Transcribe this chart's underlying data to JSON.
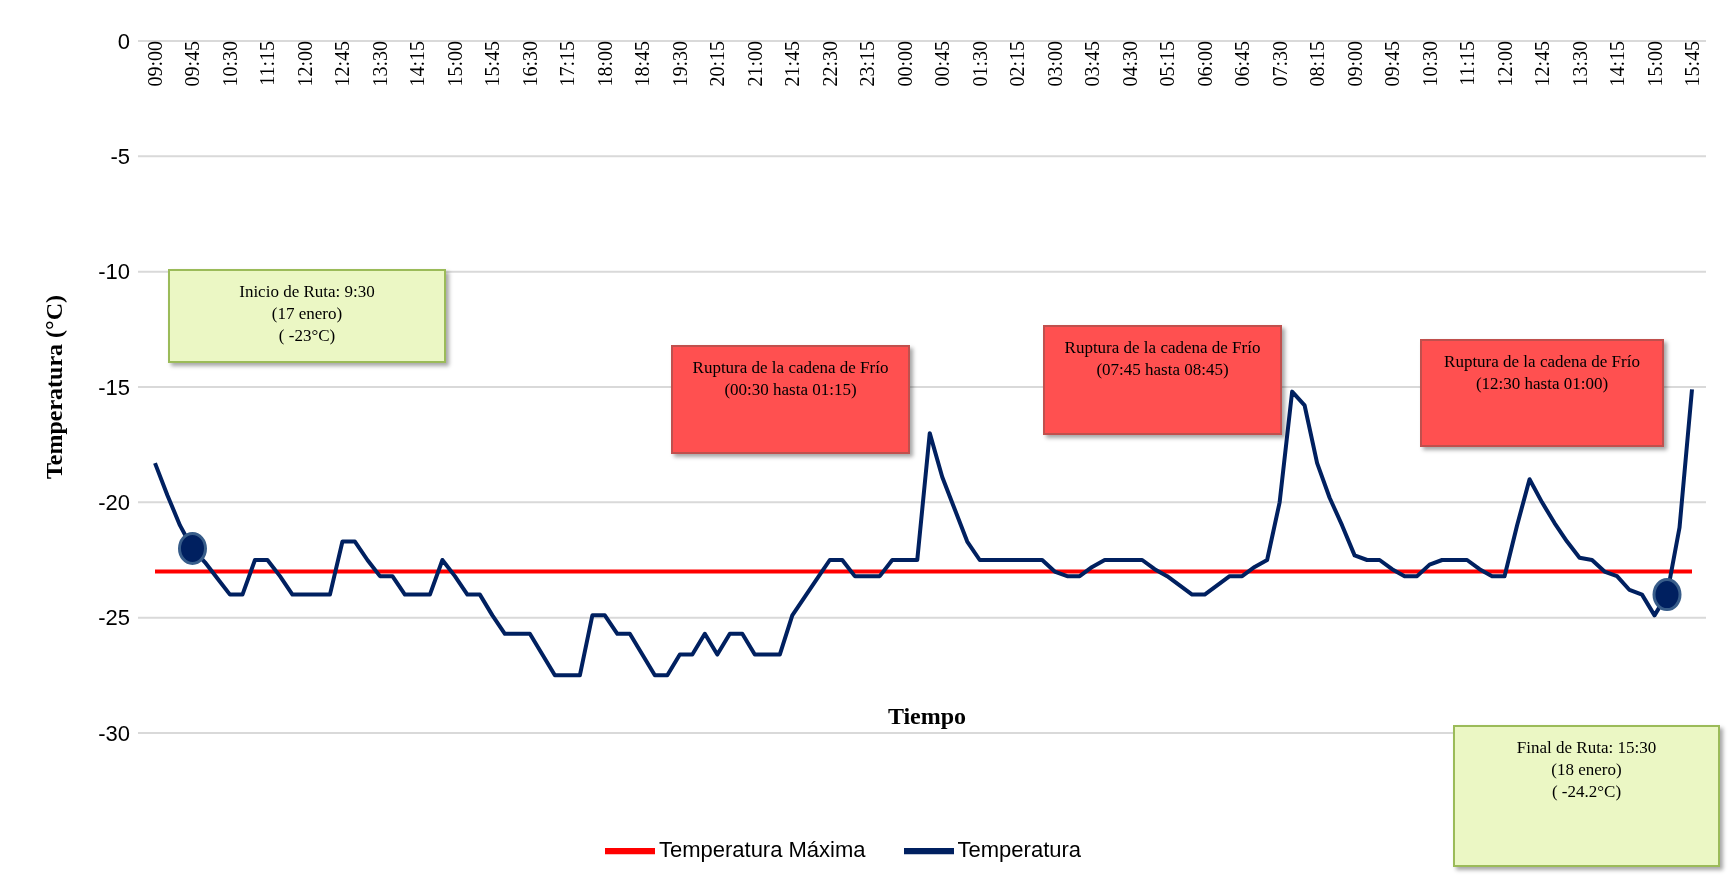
{
  "chart_data": {
    "type": "line",
    "xlabel": "Tiempo",
    "ylabel": "Temperatura (°C)",
    "categories": [
      "09:00",
      null,
      null,
      "09:45",
      null,
      null,
      "10:30",
      null,
      null,
      "11:15",
      null,
      null,
      "12:00",
      null,
      null,
      "12:45",
      null,
      null,
      "13:30",
      null,
      null,
      "14:15",
      null,
      null,
      "15:00",
      null,
      null,
      "15:45",
      null,
      null,
      "16:30",
      null,
      null,
      "17:15",
      null,
      null,
      "18:00",
      null,
      null,
      "18:45",
      null,
      null,
      "19:30",
      null,
      null,
      "20:15",
      null,
      null,
      "21:00",
      null,
      null,
      "21:45",
      null,
      null,
      "22:30",
      null,
      null,
      "23:15",
      null,
      null,
      "00:00",
      null,
      null,
      "00:45",
      null,
      null,
      "01:30",
      null,
      null,
      "02:15",
      null,
      null,
      "03:00",
      null,
      null,
      "03:45",
      null,
      null,
      "04:30",
      null,
      null,
      "05:15",
      null,
      null,
      "06:00",
      null,
      null,
      "06:45",
      null,
      null,
      "07:30",
      null,
      null,
      "08:15",
      null,
      null,
      "09:00",
      null,
      null,
      "09:45",
      null,
      null,
      "10:30",
      null,
      null,
      "11:15",
      null,
      null,
      "12:00",
      null,
      null,
      "12:45",
      null,
      null,
      "13:30",
      null,
      null,
      "14:15",
      null,
      null,
      "15:00",
      null,
      null,
      "15:45"
    ],
    "series": [
      {
        "name": "Temperatura Máxima",
        "type": "line",
        "color": "#ff0000",
        "values": [
          -23,
          -23,
          -23,
          -23,
          -23,
          -23,
          -23,
          -23,
          -23,
          -23,
          -23,
          -23,
          -23,
          -23,
          -23,
          -23,
          -23,
          -23,
          -23,
          -23,
          -23,
          -23,
          -23,
          -23,
          -23,
          -23,
          -23,
          -23,
          -23,
          -23,
          -23,
          -23,
          -23,
          -23,
          -23,
          -23,
          -23,
          -23,
          -23,
          -23,
          -23,
          -23,
          -23,
          -23,
          -23,
          -23,
          -23,
          -23,
          -23,
          -23,
          -23,
          -23,
          -23,
          -23,
          -23,
          -23,
          -23,
          -23,
          -23,
          -23,
          -23,
          -23,
          -23,
          -23,
          -23,
          -23,
          -23,
          -23,
          -23,
          -23,
          -23,
          -23,
          -23,
          -23,
          -23,
          -23,
          -23,
          -23,
          -23,
          -23,
          -23,
          -23,
          -23,
          -23,
          -23,
          -23,
          -23,
          -23,
          -23,
          -23,
          -23,
          -23,
          -23,
          -23,
          -23,
          -23,
          -23,
          -23,
          -23,
          -23,
          -23,
          -23,
          -23,
          -23,
          -23,
          -23,
          -23,
          -23,
          -23,
          -23,
          -23,
          -23,
          -23,
          -23,
          -23,
          -23,
          -23,
          -23,
          -23,
          -23,
          -23,
          -23,
          -23,
          -23
        ]
      },
      {
        "name": "Temperatura",
        "type": "line",
        "color": "#002060",
        "values": [
          -18.3,
          -19.7,
          -21.0,
          -22.0,
          -22.6,
          -23.3,
          -24.0,
          -24.0,
          -22.5,
          -22.5,
          -23.2,
          -24.0,
          -24.0,
          -24.0,
          -24.0,
          -21.7,
          -21.7,
          -22.5,
          -23.2,
          -23.2,
          -24.0,
          -24.0,
          -24.0,
          -22.5,
          -23.2,
          -24.0,
          -24.0,
          -24.9,
          -25.7,
          -25.7,
          -25.7,
          -26.6,
          -27.5,
          -27.5,
          -27.5,
          -24.9,
          -24.9,
          -25.7,
          -25.7,
          -26.6,
          -27.5,
          -27.5,
          -26.6,
          -26.6,
          -25.7,
          -26.6,
          -25.7,
          -25.7,
          -26.6,
          -26.6,
          -26.6,
          -24.9,
          -24.1,
          -23.3,
          -22.5,
          -22.5,
          -23.2,
          -23.2,
          -23.2,
          -22.5,
          -22.5,
          -22.5,
          -17.0,
          -18.9,
          -20.3,
          -21.7,
          -22.5,
          -22.5,
          -22.5,
          -22.5,
          -22.5,
          -22.5,
          -23.0,
          -23.2,
          -23.2,
          -22.8,
          -22.5,
          -22.5,
          -22.5,
          -22.5,
          -22.9,
          -23.2,
          -23.6,
          -24.0,
          -24.0,
          -23.6,
          -23.2,
          -23.2,
          -22.8,
          -22.5,
          -20.0,
          -15.2,
          -15.8,
          -18.3,
          -19.8,
          -21.0,
          -22.3,
          -22.5,
          -22.5,
          -22.9,
          -23.2,
          -23.2,
          -22.7,
          -22.5,
          -22.5,
          -22.5,
          -22.9,
          -23.2,
          -23.2,
          -21.0,
          -19.0,
          -20.0,
          -20.9,
          -21.7,
          -22.4,
          -22.5,
          -23.0,
          -23.2,
          -23.8,
          -24.0,
          -24.9,
          -24.0,
          -21.1,
          -15.1
        ]
      },
      {
        "type": "scatter",
        "color": "#002060",
        "marker": "circle",
        "values": [
          null,
          null,
          null,
          -22.0,
          null,
          null,
          null,
          null,
          null,
          null,
          null,
          null,
          null,
          null,
          null,
          null,
          null,
          null,
          null,
          null,
          null,
          null,
          null,
          null,
          null,
          null,
          null,
          null,
          null,
          null,
          null,
          null,
          null,
          null,
          null,
          null,
          null,
          null,
          null,
          null,
          null,
          null,
          null,
          null,
          null,
          null,
          null,
          null,
          null,
          null,
          null,
          null,
          null,
          null,
          null,
          null,
          null,
          null,
          null,
          null,
          null,
          null,
          null,
          null,
          null,
          null,
          null,
          null,
          null,
          null,
          null,
          null,
          null,
          null,
          null,
          null,
          null,
          null,
          null,
          null,
          null,
          null,
          null,
          null,
          null,
          null,
          null,
          null,
          null,
          null,
          null,
          null,
          null,
          null,
          null,
          null,
          null,
          null,
          null,
          null,
          null,
          null,
          null,
          null,
          null,
          null,
          null,
          null,
          null,
          null,
          null,
          null,
          null,
          null,
          null,
          null,
          null,
          null,
          null,
          null,
          null,
          -24.0,
          null,
          null
        ]
      }
    ],
    "ylim": [
      -30,
      0
    ],
    "yticks": [
      0,
      -5,
      -10,
      -15,
      -20,
      -25,
      -30
    ],
    "grid": "y",
    "legend": "bottom",
    "marker": "none",
    "annotations": [
      "Inicio de Ruta: 9:30\n(17 enero)\n( -23°C)",
      "Ruptura de la cadena de Frío\n(00:30 hasta 01:15)",
      "Ruptura de la cadena de Frío\n(07:45 hasta 08:45)",
      "Ruptura de la cadena de Frío\n(12:30 hasta 01:00)",
      "Final de Ruta: 15:30\n(18 enero)\n( -24.2°C)"
    ]
  }
}
